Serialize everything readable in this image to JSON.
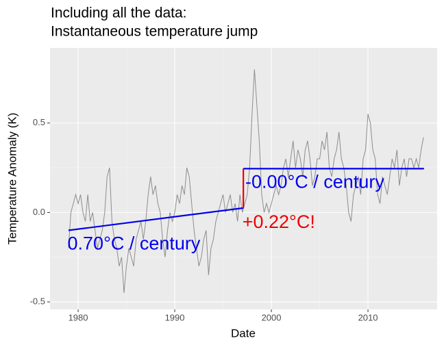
{
  "chart_data": {
    "type": "line",
    "title": [
      "Including all the data:",
      "Instantaneous temperature jump"
    ],
    "x_label": "Date",
    "y_label": "Temperature Anomaly (K)",
    "xlim": [
      1977.09,
      2017.16
    ],
    "ylim": [
      -0.542,
      0.92
    ],
    "xticks": [
      1980,
      1990,
      2000,
      2010
    ],
    "yticks": [
      -0.5,
      {
        "value": 0,
        "label": "0.0"
      },
      0.5
    ],
    "grid": true,
    "x": [
      1979,
      1979.25,
      1979.5,
      1979.75,
      1980,
      1980.25,
      1980.5,
      1980.75,
      1981,
      1981.25,
      1981.5,
      1981.75,
      1982,
      1982.25,
      1982.5,
      1982.75,
      1983,
      1983.25,
      1983.5,
      1983.75,
      1984,
      1984.25,
      1984.5,
      1984.75,
      1985,
      1985.25,
      1985.5,
      1985.75,
      1986,
      1986.25,
      1986.5,
      1986.75,
      1987,
      1987.25,
      1987.5,
      1987.75,
      1988,
      1988.25,
      1988.5,
      1988.75,
      1989,
      1989.25,
      1989.5,
      1989.75,
      1990,
      1990.25,
      1990.5,
      1990.75,
      1991,
      1991.25,
      1991.5,
      1991.75,
      1992,
      1992.25,
      1992.5,
      1992.75,
      1993,
      1993.25,
      1993.5,
      1993.75,
      1994,
      1994.25,
      1994.5,
      1994.75,
      1995,
      1995.25,
      1995.5,
      1995.75,
      1996,
      1996.25,
      1996.5,
      1996.75,
      1997,
      1997.25,
      1997.5,
      1997.75,
      1998,
      1998.25,
      1998.5,
      1998.75,
      1999,
      1999.25,
      1999.5,
      1999.75,
      2000,
      2000.25,
      2000.5,
      2000.75,
      2001,
      2001.25,
      2001.5,
      2001.75,
      2002,
      2002.25,
      2002.5,
      2002.75,
      2003,
      2003.25,
      2003.5,
      2003.75,
      2004,
      2004.25,
      2004.5,
      2004.75,
      2005,
      2005.25,
      2005.5,
      2005.75,
      2006,
      2006.25,
      2006.5,
      2006.75,
      2007,
      2007.25,
      2007.5,
      2007.75,
      2008,
      2008.25,
      2008.5,
      2008.75,
      2009,
      2009.25,
      2009.5,
      2009.75,
      2010,
      2010.25,
      2010.5,
      2010.75,
      2011,
      2011.25,
      2011.5,
      2011.75,
      2012,
      2012.25,
      2012.5,
      2012.75,
      2013,
      2013.25,
      2013.5,
      2013.75,
      2014,
      2014.25,
      2014.5,
      2014.75,
      2015,
      2015.25,
      2015.5,
      2015.75
    ],
    "series": [
      {
        "color": "#8c8c8c",
        "values": [
          -0.2,
          0.0,
          0.05,
          0.1,
          0.05,
          0.1,
          0.0,
          -0.05,
          0.1,
          -0.05,
          0.0,
          -0.1,
          -0.2,
          -0.15,
          -0.1,
          0.0,
          0.2,
          0.25,
          -0.05,
          -0.15,
          -0.2,
          -0.3,
          -0.25,
          -0.45,
          -0.3,
          -0.2,
          -0.25,
          -0.3,
          -0.15,
          -0.1,
          -0.05,
          -0.15,
          -0.05,
          0.1,
          0.2,
          0.1,
          0.15,
          0.05,
          0.0,
          -0.15,
          -0.25,
          -0.1,
          0.0,
          -0.05,
          0.0,
          0.1,
          0.05,
          0.15,
          0.1,
          0.25,
          0.2,
          0.05,
          -0.1,
          -0.2,
          -0.3,
          -0.25,
          -0.15,
          -0.1,
          -0.35,
          -0.2,
          -0.15,
          -0.05,
          0.0,
          0.05,
          0.1,
          0.0,
          0.05,
          0.1,
          0.0,
          0.05,
          -0.05,
          0.1,
          0.0,
          0.05,
          0.1,
          0.25,
          0.55,
          0.8,
          0.6,
          0.4,
          0.1,
          0.0,
          0.05,
          0.0,
          0.05,
          0.1,
          0.15,
          0.1,
          0.15,
          0.25,
          0.3,
          0.2,
          0.3,
          0.4,
          0.25,
          0.35,
          0.3,
          0.2,
          0.35,
          0.4,
          0.3,
          0.15,
          0.2,
          0.3,
          0.3,
          0.4,
          0.35,
          0.45,
          0.25,
          0.2,
          0.3,
          0.35,
          0.45,
          0.3,
          0.25,
          0.15,
          0.0,
          -0.05,
          0.1,
          0.15,
          0.2,
          0.1,
          0.3,
          0.35,
          0.55,
          0.5,
          0.35,
          0.3,
          0.1,
          0.05,
          0.2,
          0.15,
          0.1,
          0.2,
          0.3,
          0.25,
          0.35,
          0.15,
          0.25,
          0.3,
          0.2,
          0.3,
          0.3,
          0.25,
          0.3,
          0.25,
          0.35,
          0.42
        ]
      }
    ],
    "trends": [
      {
        "color": "#0000ee",
        "x": [
          1979,
          1997.1
        ],
        "values": [
          -0.1,
          0.025
        ]
      },
      {
        "color": "#ee0000",
        "x": [
          1997.1,
          1997.1
        ],
        "values": [
          0.025,
          0.245
        ]
      },
      {
        "color": "#0000ee",
        "x": [
          1997.1,
          2015.8
        ],
        "values": [
          0.245,
          0.245
        ]
      }
    ],
    "annotations": [
      {
        "text": "0.70°C / century",
        "color": "#0000ee",
        "x": 1978.9,
        "y": -0.18
      },
      {
        "text": "-0.00°C / century",
        "color": "#0000ee",
        "x": 1997.3,
        "y": 0.165
      },
      {
        "text": "+0.22°C!",
        "color": "#ee0000",
        "x": 1997.0,
        "y": -0.06
      }
    ]
  }
}
